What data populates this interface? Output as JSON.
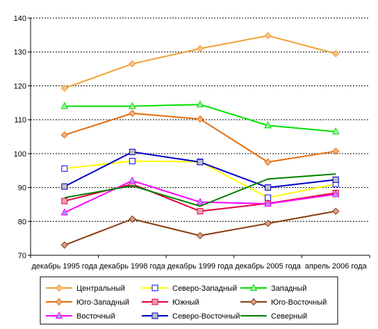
{
  "chart_data": {
    "type": "line",
    "title": "",
    "xlabel": "",
    "ylabel": "",
    "ylim": [
      70,
      140
    ],
    "yticks": [
      70,
      80,
      90,
      100,
      110,
      120,
      130,
      140
    ],
    "grid": true,
    "legend_position": "bottom",
    "categories": [
      "декабрь 1995 года",
      "декабрь 1998 года",
      "декабрь 1999 года",
      "декабрь 2005 года",
      "апрель 2006 года"
    ],
    "series": [
      {
        "name": "Центральный",
        "color": "#f0a030",
        "marker": "diamond",
        "marker_fill": "#f6c28a",
        "values": [
          119.3,
          126.5,
          131.0,
          134.8,
          129.5
        ]
      },
      {
        "name": "Северо-Западный",
        "color": "#ffff00",
        "marker": "square",
        "marker_fill": "#ffffff",
        "marker_stroke": "#0000ff",
        "values": [
          95.6,
          97.8,
          97.6,
          87.0,
          91.0
        ]
      },
      {
        "name": "Западный",
        "color": "#00e000",
        "marker": "triangle",
        "marker_fill": "#a6f0a6",
        "values": [
          114.0,
          114.0,
          114.5,
          108.3,
          106.5
        ]
      },
      {
        "name": "Юго-Западный",
        "color": "#e46c0a",
        "marker": "diamond",
        "marker_fill": "#f4b183",
        "values": [
          105.5,
          111.9,
          110.2,
          97.5,
          100.7
        ]
      },
      {
        "name": "Южный",
        "color": "#e0003c",
        "marker": "square",
        "marker_fill": "#f4a0b0",
        "values": [
          86.0,
          91.0,
          83.0,
          85.3,
          88.4
        ]
      },
      {
        "name": "Юго-Восточный",
        "color": "#8b3a0f",
        "marker": "diamond",
        "marker_fill": "#d6a28a",
        "values": [
          73.0,
          80.7,
          75.8,
          79.4,
          83.0
        ]
      },
      {
        "name": "Восточный",
        "color": "#ff00ff",
        "marker": "triangle",
        "marker_fill": "#a0a0ff",
        "values": [
          82.6,
          92.0,
          85.7,
          85.2,
          88.0
        ]
      },
      {
        "name": "Северо-Восточный",
        "color": "#0000d0",
        "marker": "square",
        "marker_fill": "#c0c0c0",
        "values": [
          90.3,
          100.5,
          97.5,
          90.0,
          92.3
        ]
      },
      {
        "name": "Северный",
        "color": "#008000",
        "marker": "none",
        "values": [
          87.0,
          90.5,
          84.5,
          92.5,
          94.0
        ]
      }
    ]
  }
}
